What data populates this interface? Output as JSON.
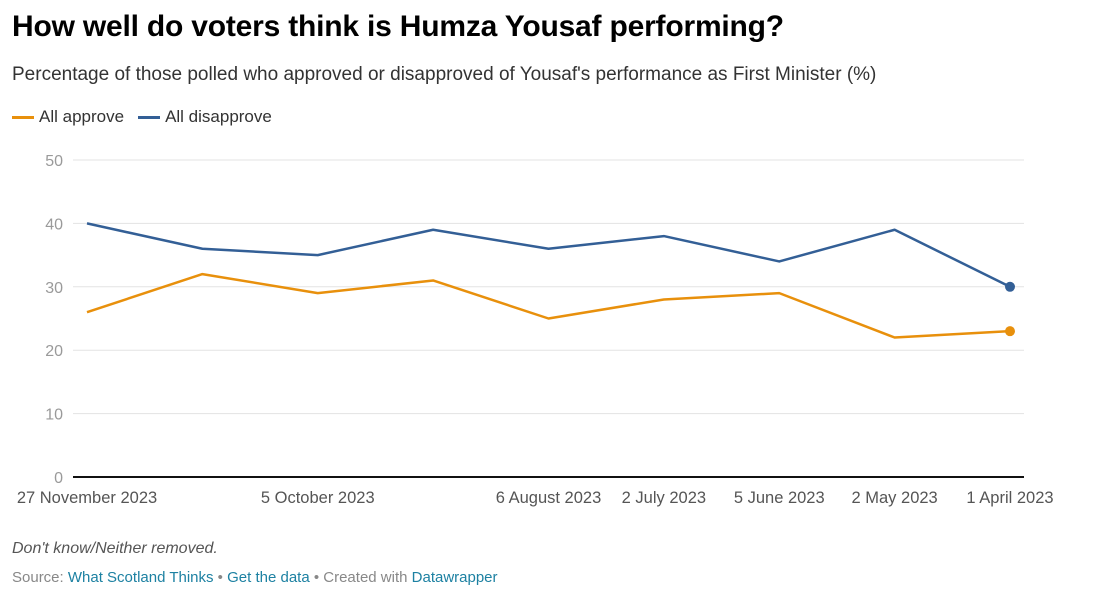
{
  "header": {
    "title": "How well do voters think is Humza Yousaf performing?",
    "subtitle": "Percentage of those polled who approved or disapproved of Yousaf's performance as First Minister (%)"
  },
  "legend": [
    {
      "label": "All approve",
      "color": "#e8900c"
    },
    {
      "label": "All disapprove",
      "color": "#335f96"
    }
  ],
  "chart_data": {
    "type": "line",
    "title": "How well do voters think is Humza Yousaf performing?",
    "subtitle": "Percentage of those polled who approved or disapproved of Yousaf's performance as First Minister (%)",
    "xlabel": "",
    "ylabel": "",
    "ylim": [
      0,
      50
    ],
    "yticks": [
      0,
      10,
      20,
      30,
      40,
      50
    ],
    "grid": true,
    "legend_position": "top-left",
    "x_tick_labels": [
      "27 November 2023",
      "5 October 2023",
      "6 August 2023",
      "2 July 2023",
      "5 June 2023",
      "2 May 2023",
      "1 April 2023"
    ],
    "x": [
      "27 November 2023",
      null,
      "5 October 2023",
      null,
      "6 August 2023",
      "2 July 2023",
      "5 June 2023",
      "2 May 2023",
      "1 April 2023"
    ],
    "series": [
      {
        "name": "All approve",
        "color": "#e8900c",
        "values": [
          26,
          32,
          29,
          31,
          25,
          28,
          29,
          22,
          23
        ]
      },
      {
        "name": "All disapprove",
        "color": "#335f96",
        "values": [
          40,
          36,
          35,
          39,
          36,
          38,
          34,
          39,
          30
        ]
      }
    ]
  },
  "notes": "Don't know/Neither removed.",
  "footer": {
    "source_prefix": "Source: ",
    "source_link": "What Scotland Thinks",
    "sep1": " • ",
    "data_link": "Get the data",
    "sep2": " • Created with ",
    "tool_link": "Datawrapper"
  }
}
